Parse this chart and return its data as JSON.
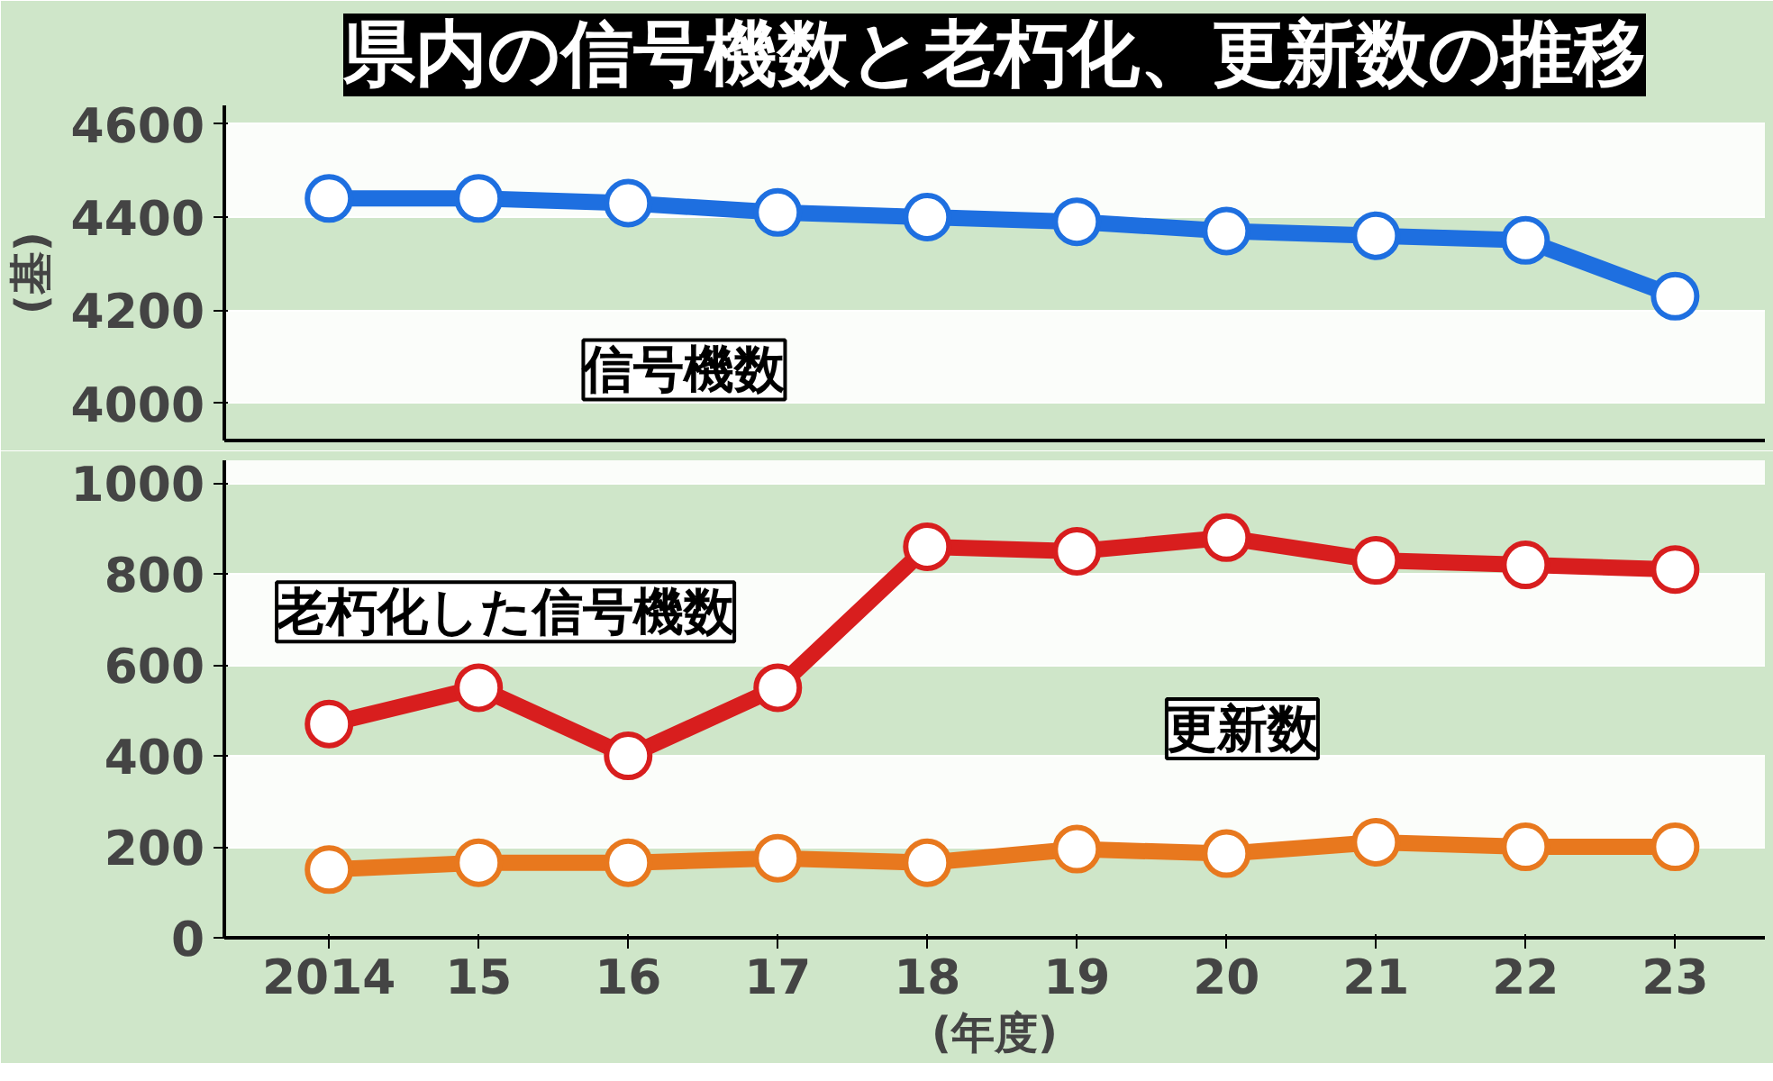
{
  "chart_data": [
    {
      "type": "line",
      "title": "県内の信号機数と老朽化、更新数の推移",
      "ylabel": "(基)",
      "categories": [
        "2014",
        "15",
        "16",
        "17",
        "18",
        "19",
        "20",
        "21",
        "22",
        "23"
      ],
      "series": [
        {
          "name": "信号機数",
          "color": "#1e6fe0",
          "values": [
            4440,
            4440,
            4430,
            4410,
            4400,
            4390,
            4370,
            4360,
            4350,
            4230
          ]
        }
      ],
      "ylim": [
        3920,
        4640
      ],
      "yticks": [
        4000,
        4200,
        4400,
        4600
      ],
      "grid": "y",
      "marker": "circle",
      "tick_labels": "y"
    },
    {
      "type": "line",
      "xlabel": "(年度)",
      "categories": [
        "2014",
        "15",
        "16",
        "17",
        "18",
        "19",
        "20",
        "21",
        "22",
        "23"
      ],
      "series": [
        {
          "name": "老朽化した信号機数",
          "color": "#d81e1e",
          "values": [
            470,
            550,
            400,
            550,
            860,
            850,
            880,
            830,
            820,
            810
          ]
        },
        {
          "name": "更新数",
          "color": "#e8781e",
          "values": [
            150,
            165,
            165,
            175,
            165,
            195,
            185,
            210,
            200,
            200
          ]
        }
      ],
      "ylim": [
        0,
        1050
      ],
      "yticks": [
        0,
        200,
        400,
        600,
        800,
        1000
      ],
      "grid": "y",
      "marker": "circle"
    }
  ]
}
